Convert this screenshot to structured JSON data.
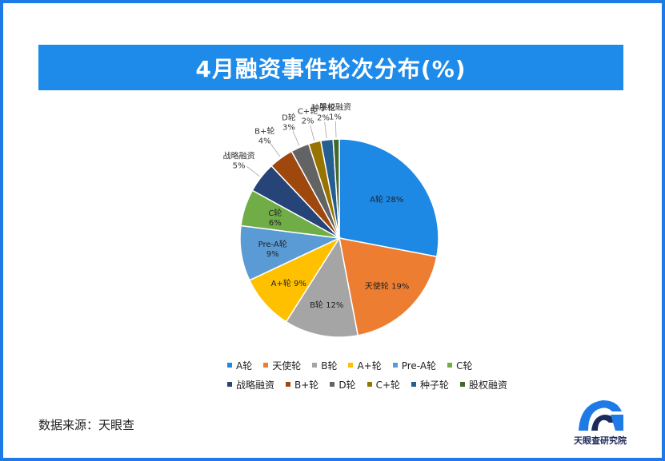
{
  "title": "4月融资事件轮次分布(%)",
  "source": "数据来源：天眼查",
  "logo_text": "天眼查研究院",
  "chart_data": {
    "type": "pie",
    "title": "4月融资事件轮次分布(%)",
    "categories": [
      "A轮",
      "天使轮",
      "B轮",
      "A+轮",
      "Pre-A轮",
      "C轮",
      "战略融资",
      "B+轮",
      "D轮",
      "C+轮",
      "种子轮",
      "股权融资"
    ],
    "values": [
      28,
      19,
      12,
      9,
      9,
      6,
      5,
      4,
      3,
      2,
      2,
      1
    ],
    "colors": [
      "#1e88e5",
      "#ed7d31",
      "#a5a5a5",
      "#ffc000",
      "#5b9bd5",
      "#70ad47",
      "#264478",
      "#9e480e",
      "#636363",
      "#997300",
      "#255e91",
      "#43682b"
    ],
    "labels": [
      "A轮 28%",
      "天使轮 19%",
      "B轮 12%",
      "A+轮 9%",
      "Pre-A轮\n9%",
      "C轮\n6%",
      "战略融资\n5%",
      "B+轮\n4%",
      "D轮\n3%",
      "C+轮\n2%",
      "种子轮\n2%",
      "股权融资\n1%"
    ],
    "legend_position": "bottom"
  }
}
